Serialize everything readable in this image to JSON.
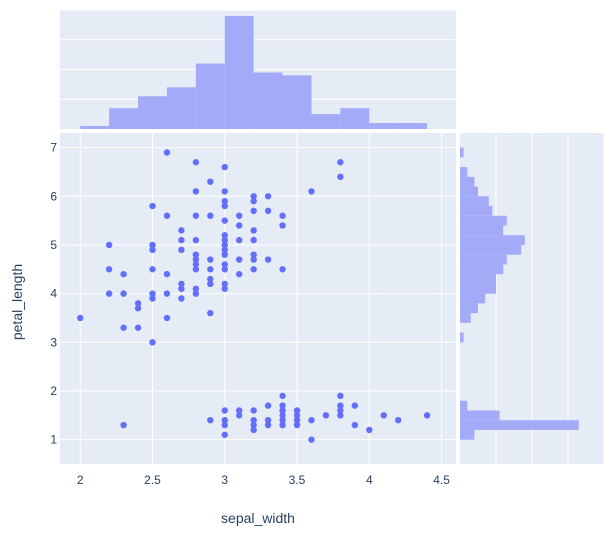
{
  "chart_data": {
    "type": "scatter",
    "xlabel": "sepal_width",
    "ylabel": "petal_length",
    "xlim": [
      1.86,
      4.6
    ],
    "ylim": [
      0.5,
      7.3
    ],
    "xticks": [
      "2",
      "2.5",
      "3",
      "3.5",
      "4",
      "4.5"
    ],
    "yticks": [
      "1",
      "2",
      "3",
      "4",
      "5",
      "6",
      "7"
    ],
    "colors": {
      "marker": "#636efa",
      "bars": "#a3aaf8",
      "plot_bg": "#e5ecf6",
      "grid": "#ffffff",
      "text": "#2a3f5f"
    },
    "points": [
      [
        2.0,
        3.5
      ],
      [
        2.2,
        4.0
      ],
      [
        2.2,
        4.5
      ],
      [
        2.2,
        5.0
      ],
      [
        2.3,
        1.3
      ],
      [
        2.3,
        3.3
      ],
      [
        2.3,
        4.0
      ],
      [
        2.3,
        4.4
      ],
      [
        2.4,
        3.3
      ],
      [
        2.4,
        3.7
      ],
      [
        2.4,
        3.8
      ],
      [
        2.5,
        3.0
      ],
      [
        2.5,
        3.9
      ],
      [
        2.5,
        4.0
      ],
      [
        2.5,
        4.5
      ],
      [
        2.5,
        4.9
      ],
      [
        2.5,
        5.0
      ],
      [
        2.5,
        5.8
      ],
      [
        2.6,
        3.5
      ],
      [
        2.6,
        4.0
      ],
      [
        2.6,
        4.4
      ],
      [
        2.6,
        5.6
      ],
      [
        2.6,
        6.9
      ],
      [
        2.7,
        3.9
      ],
      [
        2.7,
        4.1
      ],
      [
        2.7,
        4.2
      ],
      [
        2.7,
        5.1
      ],
      [
        2.7,
        5.3
      ],
      [
        2.7,
        4.9
      ],
      [
        2.8,
        4.0
      ],
      [
        2.8,
        4.1
      ],
      [
        2.8,
        4.5
      ],
      [
        2.8,
        4.6
      ],
      [
        2.8,
        4.7
      ],
      [
        2.8,
        4.8
      ],
      [
        2.8,
        5.1
      ],
      [
        2.8,
        5.6
      ],
      [
        2.8,
        6.1
      ],
      [
        2.8,
        6.7
      ],
      [
        2.9,
        1.4
      ],
      [
        2.9,
        3.6
      ],
      [
        2.9,
        4.2
      ],
      [
        2.9,
        4.3
      ],
      [
        2.9,
        4.5
      ],
      [
        2.9,
        4.7
      ],
      [
        2.9,
        5.6
      ],
      [
        2.9,
        6.3
      ],
      [
        3.0,
        1.1
      ],
      [
        3.0,
        1.3
      ],
      [
        3.0,
        1.4
      ],
      [
        3.0,
        1.6
      ],
      [
        3.0,
        4.1
      ],
      [
        3.0,
        4.2
      ],
      [
        3.0,
        4.5
      ],
      [
        3.0,
        4.6
      ],
      [
        3.0,
        4.8
      ],
      [
        3.0,
        4.9
      ],
      [
        3.0,
        5.0
      ],
      [
        3.0,
        5.1
      ],
      [
        3.0,
        5.2
      ],
      [
        3.0,
        5.5
      ],
      [
        3.0,
        5.8
      ],
      [
        3.0,
        5.9
      ],
      [
        3.0,
        6.1
      ],
      [
        3.0,
        6.6
      ],
      [
        3.1,
        1.5
      ],
      [
        3.1,
        1.6
      ],
      [
        3.1,
        4.4
      ],
      [
        3.1,
        4.7
      ],
      [
        3.1,
        5.4
      ],
      [
        3.1,
        5.6
      ],
      [
        3.1,
        5.1
      ],
      [
        3.2,
        1.2
      ],
      [
        3.2,
        1.3
      ],
      [
        3.2,
        1.4
      ],
      [
        3.2,
        1.6
      ],
      [
        3.2,
        4.5
      ],
      [
        3.2,
        4.7
      ],
      [
        3.2,
        4.8
      ],
      [
        3.2,
        5.1
      ],
      [
        3.2,
        5.3
      ],
      [
        3.2,
        5.7
      ],
      [
        3.2,
        5.9
      ],
      [
        3.2,
        6.0
      ],
      [
        3.3,
        1.4
      ],
      [
        3.3,
        1.7
      ],
      [
        3.3,
        1.3
      ],
      [
        3.3,
        4.7
      ],
      [
        3.3,
        5.7
      ],
      [
        3.3,
        6.0
      ],
      [
        3.4,
        1.4
      ],
      [
        3.4,
        1.5
      ],
      [
        3.4,
        1.6
      ],
      [
        3.4,
        1.7
      ],
      [
        3.4,
        1.9
      ],
      [
        3.4,
        1.3
      ],
      [
        3.4,
        4.5
      ],
      [
        3.4,
        5.4
      ],
      [
        3.4,
        5.6
      ],
      [
        3.5,
        1.3
      ],
      [
        3.5,
        1.4
      ],
      [
        3.5,
        1.5
      ],
      [
        3.5,
        1.6
      ],
      [
        3.6,
        1.0
      ],
      [
        3.6,
        1.4
      ],
      [
        3.6,
        6.1
      ],
      [
        3.7,
        1.5
      ],
      [
        3.8,
        1.5
      ],
      [
        3.8,
        1.6
      ],
      [
        3.8,
        1.7
      ],
      [
        3.8,
        1.9
      ],
      [
        3.8,
        6.4
      ],
      [
        3.8,
        6.7
      ],
      [
        3.9,
        1.3
      ],
      [
        3.9,
        1.7
      ],
      [
        4.0,
        1.2
      ],
      [
        4.1,
        1.5
      ],
      [
        4.2,
        1.4
      ],
      [
        4.4,
        1.5
      ]
    ],
    "top_histogram": {
      "bin_edges": [
        2.0,
        2.2,
        2.4,
        2.6,
        2.8,
        3.0,
        3.2,
        3.4,
        3.6,
        3.8,
        4.0,
        4.2,
        4.4
      ],
      "counts": [
        1,
        7,
        11,
        14,
        22,
        38,
        19,
        18,
        5,
        7,
        2,
        2
      ],
      "range": [
        0,
        40
      ]
    },
    "right_histogram": {
      "bin_edges": [
        1.0,
        1.2,
        1.4,
        1.6,
        1.8,
        2.0,
        2.2,
        2.4,
        2.6,
        2.8,
        3.0,
        3.2,
        3.4,
        3.6,
        3.8,
        4.0,
        4.2,
        4.4,
        4.6,
        4.8,
        5.0,
        5.2,
        5.4,
        5.6,
        5.8,
        6.0,
        6.2,
        6.4,
        6.6,
        6.8,
        7.0
      ],
      "counts": [
        4,
        33,
        11,
        2,
        0,
        0,
        0,
        0,
        0,
        0,
        1,
        0,
        3,
        5,
        7,
        10,
        10,
        12,
        13,
        17,
        18,
        12,
        13,
        9,
        8,
        5,
        4,
        2,
        0,
        1
      ],
      "range": [
        0,
        40
      ]
    }
  }
}
